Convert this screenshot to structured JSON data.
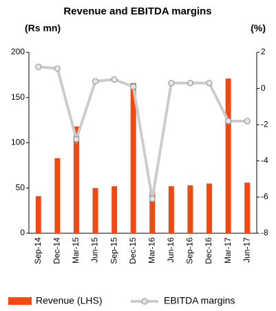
{
  "chart_data": {
    "type": "bar",
    "title": "Revenue and EBITDA margins",
    "y_label": "(Rs mn)",
    "y2_label": "(%)",
    "categories": [
      "Sep-14",
      "Dec-14",
      "Mar-15",
      "Jun-15",
      "Sep-15",
      "Dec-15",
      "Mar-16",
      "Jun-16",
      "Sep-16",
      "Dec-16",
      "Mar-17",
      "Jun-17"
    ],
    "series": [
      {
        "name": "Revenue (LHS)",
        "type": "bar",
        "color": "#f04a12",
        "values": [
          41,
          83,
          118,
          50,
          52,
          166,
          48,
          52,
          53,
          55,
          171,
          56
        ]
      },
      {
        "name": "EBITDA margins",
        "type": "line",
        "axis": "y2",
        "color": "#cccccc",
        "marker_color": "#999999",
        "values": [
          1.2,
          1.1,
          -2.8,
          0.4,
          0.5,
          0.1,
          -6.1,
          0.3,
          0.3,
          0.3,
          -1.8,
          -1.8
        ]
      }
    ],
    "ylim": [
      0,
      200
    ],
    "yticks": [
      0,
      50,
      100,
      150,
      200
    ],
    "y2lim": [
      -8,
      2
    ],
    "y2ticks": [
      -8,
      -6,
      -4,
      -2,
      0,
      2
    ]
  }
}
